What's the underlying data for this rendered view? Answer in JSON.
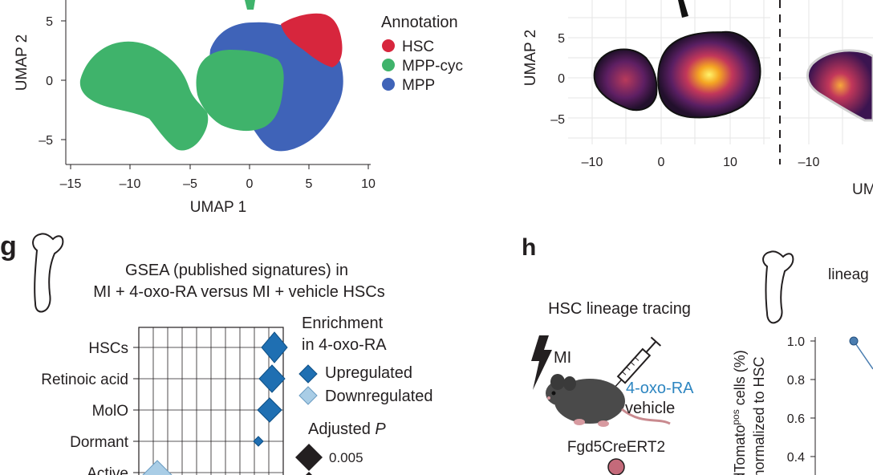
{
  "panel_umap": {
    "ylabel": "UMAP 2",
    "xlabel": "UMAP 1",
    "xticks": [
      "–15",
      "–10",
      "–5",
      "0",
      "5",
      "10"
    ],
    "yticks": [
      "5",
      "0",
      "–5"
    ],
    "legend_title": "Annotation",
    "legend": [
      {
        "label": "HSC",
        "color": "#d7263d"
      },
      {
        "label": "MPP-cyc",
        "color": "#3fb36b"
      },
      {
        "label": "MPP",
        "color": "#3f63b8"
      }
    ]
  },
  "panel_density": {
    "ylabel": "UMAP 2",
    "xlabel_partial": "UM",
    "yticks": [
      "5",
      "0",
      "–5"
    ],
    "xticks_left": [
      "–10",
      "0",
      "10"
    ],
    "xticks_right": [
      "–10"
    ]
  },
  "panel_g": {
    "letter": "g",
    "title_line1": "GSEA (published signatures) in",
    "title_line2": "MI + 4-oxo-RA versus MI + vehicle HSCs",
    "categories": [
      "HSCs",
      "Retinoic acid",
      "MolO",
      "Dormant",
      "Active"
    ],
    "legend_title_1": "Enrichment",
    "legend_title_2": "in 4-oxo-RA",
    "legend_up": "Upregulated",
    "legend_down": "Downregulated",
    "padj_title": "Adjusted",
    "padj_title_italic": "P",
    "padj_value": "0.005",
    "colors": {
      "up": "#1f6fb2",
      "down": "#a9cde6"
    }
  },
  "panel_h": {
    "letter": "h",
    "title": "HSC lineage tracing",
    "mi_label": "MI",
    "treatment_1": "4-oxo-RA",
    "treatment_2": "vehicle",
    "strain": "Fgd5CreERT2",
    "side_title_partial": "lineag",
    "ylabel_line1": "tdTomato",
    "ylabel_sup": "pos",
    "ylabel_line1_end": " cells (%)",
    "ylabel_line2": "normalized to HSC",
    "yticks": [
      "1.0",
      "0.8",
      "0.6",
      "0.4"
    ],
    "colors": {
      "treatment": "#2e86c1",
      "point": "#4a7db0"
    }
  }
}
